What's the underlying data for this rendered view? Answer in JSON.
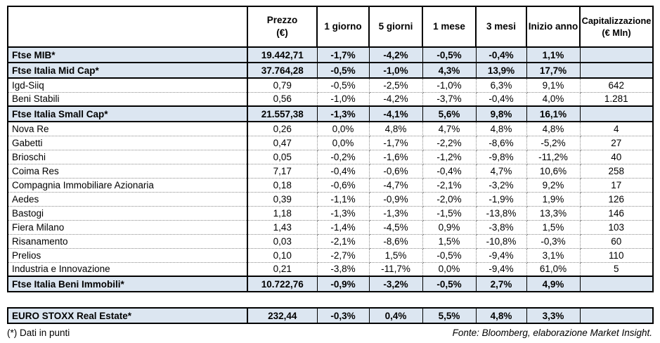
{
  "colors": {
    "highlight": "#dce6f1",
    "border": "#000000",
    "background": "#ffffff"
  },
  "chart_data": {
    "type": "table",
    "columns": [
      "",
      "Prezzo\n(€)",
      "1 giorno",
      "5 giorni",
      "1 mese",
      "3 mesi",
      "Inizio anno",
      "Capitalizzazione\n(€ Mln)"
    ],
    "rows": [
      {
        "name": "Ftse MIB*",
        "style": "index",
        "values": [
          "19.442,71",
          "-1,7%",
          "-4,2%",
          "-0,5%",
          "-0,4%",
          "1,1%",
          ""
        ]
      },
      {
        "name": "Ftse Italia Mid Cap*",
        "style": "index",
        "values": [
          "37.764,28",
          "-0,5%",
          "-1,0%",
          "4,3%",
          "13,9%",
          "17,7%",
          ""
        ]
      },
      {
        "name": "Igd-Siiq",
        "style": "stock",
        "values": [
          "0,79",
          "-0,5%",
          "-2,5%",
          "-1,0%",
          "6,3%",
          "9,1%",
          "642"
        ]
      },
      {
        "name": "Beni Stabili",
        "style": "stock",
        "values": [
          "0,56",
          "-1,0%",
          "-4,2%",
          "-3,7%",
          "-0,4%",
          "4,0%",
          "1.281"
        ]
      },
      {
        "name": "Ftse Italia Small Cap*",
        "style": "index",
        "values": [
          "21.557,38",
          "-1,3%",
          "-4,1%",
          "5,6%",
          "9,8%",
          "16,1%",
          ""
        ]
      },
      {
        "name": "Nova Re",
        "style": "stock",
        "values": [
          "0,26",
          "0,0%",
          "4,8%",
          "4,7%",
          "4,8%",
          "4,8%",
          "4"
        ]
      },
      {
        "name": "Gabetti",
        "style": "stock",
        "values": [
          "0,47",
          "0,0%",
          "-1,7%",
          "-2,2%",
          "-8,6%",
          "-5,2%",
          "27"
        ]
      },
      {
        "name": "Brioschi",
        "style": "stock",
        "values": [
          "0,05",
          "-0,2%",
          "-1,6%",
          "-1,2%",
          "-9,8%",
          "-11,2%",
          "40"
        ]
      },
      {
        "name": "Coima Res",
        "style": "stock",
        "values": [
          "7,17",
          "-0,4%",
          "-0,6%",
          "-0,4%",
          "4,7%",
          "10,6%",
          "258"
        ]
      },
      {
        "name": "Compagnia Immobiliare Azionaria",
        "style": "stock",
        "values": [
          "0,18",
          "-0,6%",
          "-4,7%",
          "-2,1%",
          "-3,2%",
          "9,2%",
          "17"
        ]
      },
      {
        "name": "Aedes",
        "style": "stock",
        "values": [
          "0,39",
          "-1,1%",
          "-0,9%",
          "-2,0%",
          "-1,9%",
          "1,9%",
          "126"
        ]
      },
      {
        "name": "Bastogi",
        "style": "stock",
        "values": [
          "1,18",
          "-1,3%",
          "-1,3%",
          "-1,5%",
          "-13,8%",
          "13,3%",
          "146"
        ]
      },
      {
        "name": "Fiera Milano",
        "style": "stock",
        "values": [
          "1,43",
          "-1,4%",
          "-4,5%",
          "0,9%",
          "-3,8%",
          "1,5%",
          "103"
        ]
      },
      {
        "name": "Risanamento",
        "style": "stock",
        "values": [
          "0,03",
          "-2,1%",
          "-8,6%",
          "1,5%",
          "-10,8%",
          "-0,3%",
          "60"
        ]
      },
      {
        "name": "Prelios",
        "style": "stock",
        "values": [
          "0,10",
          "-2,7%",
          "1,5%",
          "-0,5%",
          "-9,4%",
          "3,1%",
          "110"
        ]
      },
      {
        "name": "Industria e Innovazione",
        "style": "stock",
        "values": [
          "0,21",
          "-3,8%",
          "-11,7%",
          "0,0%",
          "-9,4%",
          "61,0%",
          "5"
        ]
      },
      {
        "name": "Ftse Italia Beni Immobili*",
        "style": "index",
        "values": [
          "10.722,76",
          "-0,9%",
          "-3,2%",
          "-0,5%",
          "2,7%",
          "4,9%",
          ""
        ]
      }
    ],
    "separate_row": {
      "name": "EURO STOXX Real Estate*",
      "style": "index",
      "values": [
        "232,44",
        "-0,3%",
        "0,4%",
        "5,5%",
        "4,8%",
        "3,3%",
        ""
      ]
    },
    "column_keys": [
      "name",
      "prezzo",
      "1-giorno",
      "5-giorni",
      "1-mese",
      "3-mesi",
      "inizio-anno",
      "capitalizzazione"
    ]
  },
  "footer": {
    "note": "(*) Dati in punti",
    "source": "Fonte: Bloomberg, elaborazione Market Insight."
  }
}
